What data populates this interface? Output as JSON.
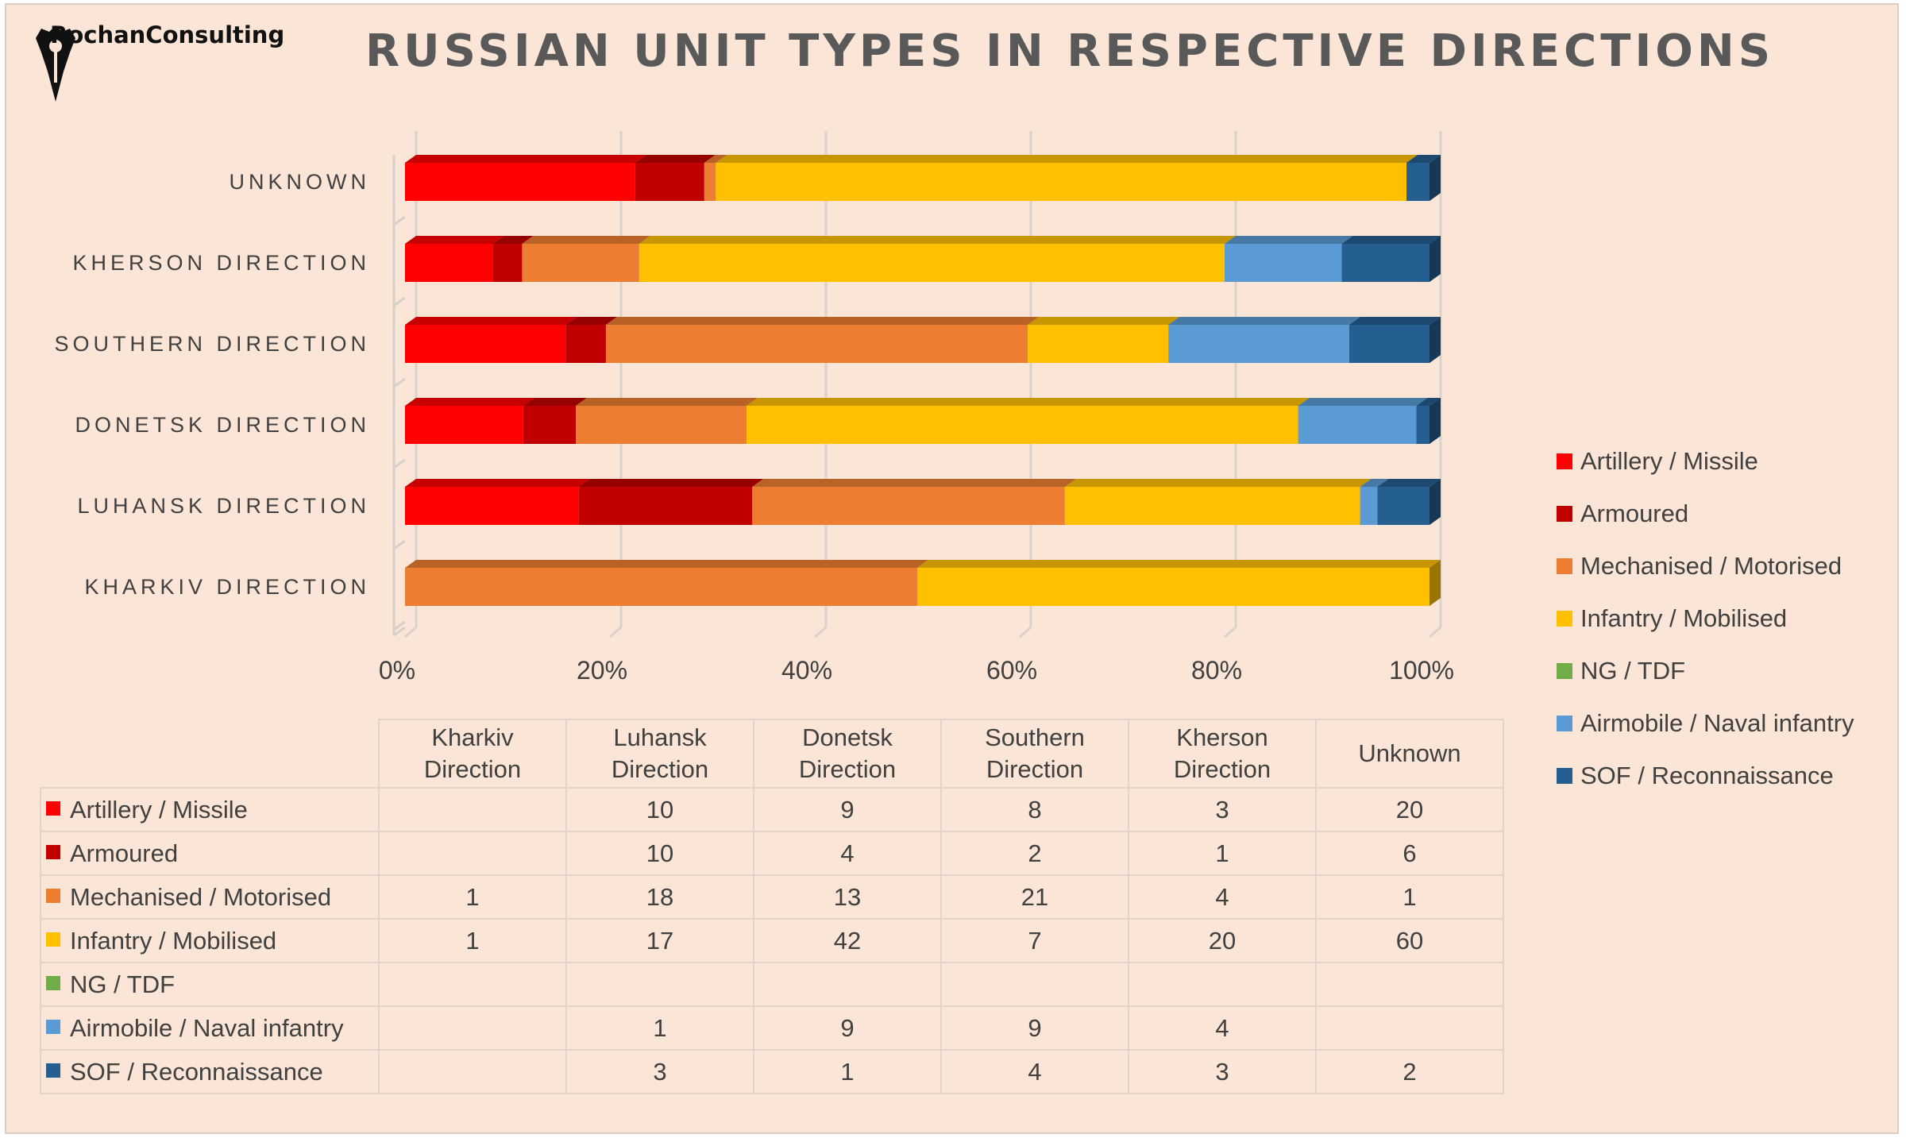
{
  "logo": {
    "text": "RochanConsulting"
  },
  "chart_data": {
    "type": "bar",
    "orientation": "horizontal",
    "stacked": "100%",
    "title": "RUSSIAN UNIT TYPES IN RESPECTIVE DIRECTIONS",
    "categories": [
      "UNKNOWN",
      "KHERSON DIRECTION",
      "SOUTHERN DIRECTION",
      "DONETSK DIRECTION",
      "LUHANSK DIRECTION",
      "KHARKIV DIRECTION"
    ],
    "x_ticks": [
      "0%",
      "20%",
      "40%",
      "60%",
      "80%",
      "100%"
    ],
    "xlim": [
      0,
      100
    ],
    "grid": true,
    "legend_position": "right",
    "series": [
      {
        "name": "Artillery / Missile",
        "color": "#ff0000",
        "values": [
          20,
          3,
          8,
          9,
          10,
          0
        ]
      },
      {
        "name": "Armoured",
        "color": "#c00000",
        "values": [
          6,
          1,
          2,
          4,
          10,
          0
        ]
      },
      {
        "name": "Mechanised / Motorised",
        "color": "#ed7d31",
        "values": [
          1,
          4,
          21,
          13,
          18,
          1
        ]
      },
      {
        "name": "Infantry / Mobilised",
        "color": "#ffc000",
        "values": [
          60,
          20,
          7,
          42,
          17,
          1
        ]
      },
      {
        "name": "NG / TDF",
        "color": "#70ad47",
        "values": [
          0,
          0,
          0,
          0,
          0,
          0
        ]
      },
      {
        "name": "Airmobile / Naval infantry",
        "color": "#5b9bd5",
        "values": [
          0,
          4,
          9,
          9,
          1,
          0
        ]
      },
      {
        "name": "SOF / Reconnaissance",
        "color": "#255e91",
        "values": [
          2,
          3,
          4,
          1,
          3,
          0
        ]
      }
    ]
  },
  "table": {
    "columns": [
      "Kharkiv\nDirection",
      "Luhansk\nDirection",
      "Donetsk\nDirection",
      "Southern\nDirection",
      "Kherson\nDirection",
      "Unknown"
    ],
    "rows": [
      {
        "label": "Artillery / Missile",
        "color": "#ff0000",
        "cells": [
          "",
          "10",
          "9",
          "8",
          "3",
          "20"
        ]
      },
      {
        "label": "Armoured",
        "color": "#c00000",
        "cells": [
          "",
          "10",
          "4",
          "2",
          "1",
          "6"
        ]
      },
      {
        "label": "Mechanised / Motorised",
        "color": "#ed7d31",
        "cells": [
          "1",
          "18",
          "13",
          "21",
          "4",
          "1"
        ]
      },
      {
        "label": "Infantry / Mobilised",
        "color": "#ffc000",
        "cells": [
          "1",
          "17",
          "42",
          "7",
          "20",
          "60"
        ]
      },
      {
        "label": "NG / TDF",
        "color": "#70ad47",
        "cells": [
          "",
          "",
          "",
          "",
          "",
          ""
        ]
      },
      {
        "label": "Airmobile / Naval infantry",
        "color": "#5b9bd5",
        "cells": [
          "",
          "1",
          "9",
          "9",
          "4",
          ""
        ]
      },
      {
        "label": "SOF / Reconnaissance",
        "color": "#255e91",
        "cells": [
          "",
          "3",
          "1",
          "4",
          "3",
          "2"
        ]
      }
    ]
  }
}
